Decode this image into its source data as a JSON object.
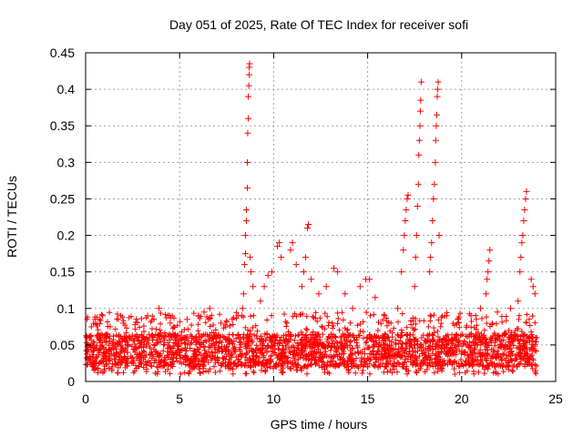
{
  "chart_data": {
    "type": "scatter",
    "title": "Day 051 of 2025, Rate Of TEC Index for receiver sofi",
    "xlabel": "GPS time / hours",
    "ylabel": "ROTI / TECUs",
    "xlim": [
      0,
      25
    ],
    "ylim": [
      0,
      0.45
    ],
    "xticks": [
      "0",
      "5",
      "10",
      "15",
      "20",
      "25"
    ],
    "yticks": [
      "0",
      "0.05",
      "0.1",
      "0.15",
      "0.2",
      "0.25",
      "0.3",
      "0.35",
      "0.4",
      "0.45"
    ],
    "grid": true,
    "marker": "+",
    "color": "#ff0000",
    "baseline_band": {
      "x_range": [
        0,
        24
      ],
      "typical_range": [
        0.02,
        0.065
      ],
      "description_note": "dense band of points"
    },
    "series": [
      {
        "name": "ROTI",
        "points": [
          [
            0.5,
            0.085
          ],
          [
            0.9,
            0.09
          ],
          [
            1.3,
            0.075
          ],
          [
            2.0,
            0.08
          ],
          [
            2.7,
            0.085
          ],
          [
            3.3,
            0.09
          ],
          [
            3.9,
            0.1
          ],
          [
            4.5,
            0.08
          ],
          [
            5.4,
            0.085
          ],
          [
            6.0,
            0.09
          ],
          [
            6.3,
            0.095
          ],
          [
            6.6,
            0.1
          ],
          [
            7.2,
            0.08
          ],
          [
            7.8,
            0.085
          ],
          [
            8.3,
            0.09
          ],
          [
            8.35,
            0.1
          ],
          [
            8.4,
            0.12
          ],
          [
            8.45,
            0.16
          ],
          [
            8.5,
            0.175
          ],
          [
            8.5,
            0.2
          ],
          [
            8.55,
            0.22
          ],
          [
            8.55,
            0.235
          ],
          [
            8.6,
            0.265
          ],
          [
            8.6,
            0.3
          ],
          [
            8.62,
            0.34
          ],
          [
            8.65,
            0.36
          ],
          [
            8.65,
            0.39
          ],
          [
            8.68,
            0.405
          ],
          [
            8.7,
            0.42
          ],
          [
            8.7,
            0.43
          ],
          [
            8.72,
            0.435
          ],
          [
            8.75,
            0.17
          ],
          [
            8.8,
            0.15
          ],
          [
            8.9,
            0.13
          ],
          [
            9.3,
            0.11
          ],
          [
            9.5,
            0.13
          ],
          [
            9.7,
            0.145
          ],
          [
            9.9,
            0.15
          ],
          [
            10.2,
            0.185
          ],
          [
            10.3,
            0.19
          ],
          [
            10.4,
            0.17
          ],
          [
            10.9,
            0.18
          ],
          [
            11.0,
            0.19
          ],
          [
            11.2,
            0.16
          ],
          [
            11.5,
            0.13
          ],
          [
            11.6,
            0.15
          ],
          [
            11.7,
            0.17
          ],
          [
            11.8,
            0.21
          ],
          [
            11.85,
            0.215
          ],
          [
            12.0,
            0.14
          ],
          [
            12.4,
            0.12
          ],
          [
            12.8,
            0.13
          ],
          [
            13.2,
            0.155
          ],
          [
            13.4,
            0.15
          ],
          [
            13.8,
            0.12
          ],
          [
            14.2,
            0.1
          ],
          [
            14.6,
            0.13
          ],
          [
            14.9,
            0.14
          ],
          [
            15.1,
            0.14
          ],
          [
            15.4,
            0.115
          ],
          [
            15.9,
            0.09
          ],
          [
            16.6,
            0.1
          ],
          [
            16.8,
            0.15
          ],
          [
            16.9,
            0.18
          ],
          [
            16.95,
            0.2
          ],
          [
            17.0,
            0.22
          ],
          [
            17.05,
            0.235
          ],
          [
            17.1,
            0.25
          ],
          [
            17.15,
            0.255
          ],
          [
            17.5,
            0.13
          ],
          [
            17.55,
            0.17
          ],
          [
            17.6,
            0.2
          ],
          [
            17.65,
            0.24
          ],
          [
            17.7,
            0.27
          ],
          [
            17.72,
            0.31
          ],
          [
            17.75,
            0.33
          ],
          [
            17.78,
            0.35
          ],
          [
            17.8,
            0.37
          ],
          [
            17.82,
            0.385
          ],
          [
            17.85,
            0.41
          ],
          [
            18.3,
            0.15
          ],
          [
            18.35,
            0.17
          ],
          [
            18.4,
            0.19
          ],
          [
            18.45,
            0.22
          ],
          [
            18.5,
            0.25
          ],
          [
            18.55,
            0.27
          ],
          [
            18.6,
            0.3
          ],
          [
            18.62,
            0.33
          ],
          [
            18.65,
            0.35
          ],
          [
            18.68,
            0.365
          ],
          [
            18.7,
            0.39
          ],
          [
            18.72,
            0.4
          ],
          [
            18.75,
            0.41
          ],
          [
            18.8,
            0.2
          ],
          [
            19.2,
            0.09
          ],
          [
            19.8,
            0.085
          ],
          [
            20.5,
            0.09
          ],
          [
            21.0,
            0.1
          ],
          [
            21.3,
            0.12
          ],
          [
            21.35,
            0.14
          ],
          [
            21.4,
            0.15
          ],
          [
            21.45,
            0.165
          ],
          [
            21.5,
            0.18
          ],
          [
            21.9,
            0.095
          ],
          [
            22.6,
            0.1
          ],
          [
            23.0,
            0.11
          ],
          [
            23.1,
            0.15
          ],
          [
            23.15,
            0.17
          ],
          [
            23.2,
            0.19
          ],
          [
            23.25,
            0.2
          ],
          [
            23.3,
            0.22
          ],
          [
            23.35,
            0.235
          ],
          [
            23.4,
            0.25
          ],
          [
            23.45,
            0.26
          ],
          [
            23.7,
            0.14
          ],
          [
            23.8,
            0.13
          ],
          [
            23.9,
            0.12
          ]
        ]
      }
    ]
  }
}
